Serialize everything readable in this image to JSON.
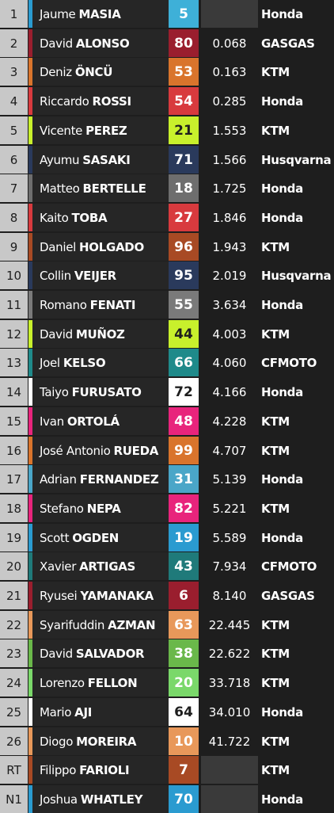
{
  "results": [
    {
      "pos": "1",
      "first": "Jaume",
      "last": "MASIA",
      "num": "5",
      "gap": "",
      "mfr": "Honda",
      "stripe": "#2a9bd0",
      "numbg": "#3eb0d8",
      "numfg": "#ffffff",
      "gapbg": "#3a3a3a"
    },
    {
      "pos": "2",
      "first": "David",
      "last": "ALONSO",
      "num": "80",
      "gap": "0.068",
      "mfr": "GASGAS",
      "stripe": "#9a1e2e",
      "numbg": "#9a1e2e",
      "numfg": "#ffffff",
      "gapbg": "#1e1e1e"
    },
    {
      "pos": "3",
      "first": "Deniz",
      "last": "ÖNCÜ",
      "num": "53",
      "gap": "0.163",
      "mfr": "KTM",
      "stripe": "#d9742c",
      "numbg": "#d9742c",
      "numfg": "#ffffff",
      "gapbg": "#1e1e1e"
    },
    {
      "pos": "4",
      "first": "Riccardo",
      "last": "ROSSI",
      "num": "54",
      "gap": "0.285",
      "mfr": "Honda",
      "stripe": "#d83a3e",
      "numbg": "#d83a3e",
      "numfg": "#ffffff",
      "gapbg": "#1e1e1e"
    },
    {
      "pos": "5",
      "first": "Vicente",
      "last": "PEREZ",
      "num": "21",
      "gap": "1.553",
      "mfr": "KTM",
      "stripe": "#c8f02c",
      "numbg": "#c8f02c",
      "numfg": "#1e1e1e",
      "gapbg": "#1e1e1e"
    },
    {
      "pos": "6",
      "first": "Ayumu",
      "last": "SASAKI",
      "num": "71",
      "gap": "1.566",
      "mfr": "Husqvarna",
      "stripe": "#2a3a5c",
      "numbg": "#2a3a5c",
      "numfg": "#ffffff",
      "gapbg": "#1e1e1e"
    },
    {
      "pos": "7",
      "first": "Matteo",
      "last": "BERTELLE",
      "num": "18",
      "gap": "1.725",
      "mfr": "Honda",
      "stripe": "#6e6e6e",
      "numbg": "#6e6e6e",
      "numfg": "#ffffff",
      "gapbg": "#1e1e1e"
    },
    {
      "pos": "8",
      "first": "Kaito",
      "last": "TOBA",
      "num": "27",
      "gap": "1.846",
      "mfr": "Honda",
      "stripe": "#d83a3e",
      "numbg": "#d83a3e",
      "numfg": "#ffffff",
      "gapbg": "#1e1e1e"
    },
    {
      "pos": "9",
      "first": "Daniel",
      "last": "HOLGADO",
      "num": "96",
      "gap": "1.943",
      "mfr": "KTM",
      "stripe": "#a84a24",
      "numbg": "#a84a24",
      "numfg": "#ffffff",
      "gapbg": "#1e1e1e"
    },
    {
      "pos": "10",
      "first": "Collin",
      "last": "VEIJER",
      "num": "95",
      "gap": "2.019",
      "mfr": "Husqvarna",
      "stripe": "#2a3a5c",
      "numbg": "#2a3a5c",
      "numfg": "#ffffff",
      "gapbg": "#1e1e1e"
    },
    {
      "pos": "11",
      "first": "Romano",
      "last": "FENATI",
      "num": "55",
      "gap": "3.634",
      "mfr": "Honda",
      "stripe": "#7a7a7a",
      "numbg": "#7a7a7a",
      "numfg": "#ffffff",
      "gapbg": "#1e1e1e"
    },
    {
      "pos": "12",
      "first": "David",
      "last": "MUÑOZ",
      "num": "44",
      "gap": "4.003",
      "mfr": "KTM",
      "stripe": "#c8f02c",
      "numbg": "#c8f02c",
      "numfg": "#1e1e1e",
      "gapbg": "#1e1e1e"
    },
    {
      "pos": "13",
      "first": "Joel",
      "last": "KELSO",
      "num": "66",
      "gap": "4.060",
      "mfr": "CFMOTO",
      "stripe": "#1f8a8a",
      "numbg": "#1f8a8a",
      "numfg": "#ffffff",
      "gapbg": "#1e1e1e"
    },
    {
      "pos": "14",
      "first": "Taiyo",
      "last": "FURUSATO",
      "num": "72",
      "gap": "4.166",
      "mfr": "Honda",
      "stripe": "#ffffff",
      "numbg": "#ffffff",
      "numfg": "#1e1e1e",
      "gapbg": "#1e1e1e"
    },
    {
      "pos": "15",
      "first": "Ivan",
      "last": "ORTOLÁ",
      "num": "48",
      "gap": "4.228",
      "mfr": "KTM",
      "stripe": "#e8247c",
      "numbg": "#e8247c",
      "numfg": "#ffffff",
      "gapbg": "#1e1e1e"
    },
    {
      "pos": "16",
      "first": "José Antonio",
      "last": "RUEDA",
      "num": "99",
      "gap": "4.707",
      "mfr": "KTM",
      "stripe": "#d9742c",
      "numbg": "#d9742c",
      "numfg": "#ffffff",
      "gapbg": "#1e1e1e"
    },
    {
      "pos": "17",
      "first": "Adrian",
      "last": "FERNANDEZ",
      "num": "31",
      "gap": "5.139",
      "mfr": "Honda",
      "stripe": "#4aa6c8",
      "numbg": "#4aa6c8",
      "numfg": "#ffffff",
      "gapbg": "#1e1e1e"
    },
    {
      "pos": "18",
      "first": "Stefano",
      "last": "NEPA",
      "num": "82",
      "gap": "5.221",
      "mfr": "KTM",
      "stripe": "#e8247c",
      "numbg": "#e8247c",
      "numfg": "#ffffff",
      "gapbg": "#1e1e1e"
    },
    {
      "pos": "19",
      "first": "Scott",
      "last": "OGDEN",
      "num": "19",
      "gap": "5.589",
      "mfr": "Honda",
      "stripe": "#2a9bd0",
      "numbg": "#2a9bd0",
      "numfg": "#ffffff",
      "gapbg": "#1e1e1e"
    },
    {
      "pos": "20",
      "first": "Xavier",
      "last": "ARTIGAS",
      "num": "43",
      "gap": "7.934",
      "mfr": "CFMOTO",
      "stripe": "#1f7a7a",
      "numbg": "#1f7a7a",
      "numfg": "#ffffff",
      "gapbg": "#1e1e1e"
    },
    {
      "pos": "21",
      "first": "Ryusei",
      "last": "YAMANAKA",
      "num": "6",
      "gap": "8.140",
      "mfr": "GASGAS",
      "stripe": "#9a1e2e",
      "numbg": "#9a1e2e",
      "numfg": "#ffffff",
      "gapbg": "#1e1e1e"
    },
    {
      "pos": "22",
      "first": "Syarifuddin",
      "last": "AZMAN",
      "num": "63",
      "gap": "22.445",
      "mfr": "KTM",
      "stripe": "#e8985a",
      "numbg": "#e8985a",
      "numfg": "#ffffff",
      "gapbg": "#1e1e1e"
    },
    {
      "pos": "23",
      "first": "David",
      "last": "SALVADOR",
      "num": "38",
      "gap": "22.622",
      "mfr": "KTM",
      "stripe": "#6ab84a",
      "numbg": "#6ab84a",
      "numfg": "#ffffff",
      "gapbg": "#1e1e1e"
    },
    {
      "pos": "24",
      "first": "Lorenzo",
      "last": "FELLON",
      "num": "20",
      "gap": "33.718",
      "mfr": "KTM",
      "stripe": "#7ad86a",
      "numbg": "#7ad86a",
      "numfg": "#ffffff",
      "gapbg": "#1e1e1e"
    },
    {
      "pos": "25",
      "first": "Mario",
      "last": "AJI",
      "num": "64",
      "gap": "34.010",
      "mfr": "Honda",
      "stripe": "#ffffff",
      "numbg": "#ffffff",
      "numfg": "#1e1e1e",
      "gapbg": "#1e1e1e"
    },
    {
      "pos": "26",
      "first": "Diogo",
      "last": "MOREIRA",
      "num": "10",
      "gap": "41.722",
      "mfr": "KTM",
      "stripe": "#e8985a",
      "numbg": "#e8985a",
      "numfg": "#ffffff",
      "gapbg": "#1e1e1e"
    },
    {
      "pos": "RT",
      "first": "Filippo",
      "last": "FARIOLI",
      "num": "7",
      "gap": "",
      "mfr": "KTM",
      "stripe": "#a84a24",
      "numbg": "#a84a24",
      "numfg": "#ffffff",
      "gapbg": "#3a3a3a"
    },
    {
      "pos": "N1",
      "first": "Joshua",
      "last": "WHATLEY",
      "num": "70",
      "gap": "",
      "mfr": "Honda",
      "stripe": "#2a9bd0",
      "numbg": "#2a9bd0",
      "numfg": "#ffffff",
      "gapbg": "#3a3a3a"
    }
  ]
}
